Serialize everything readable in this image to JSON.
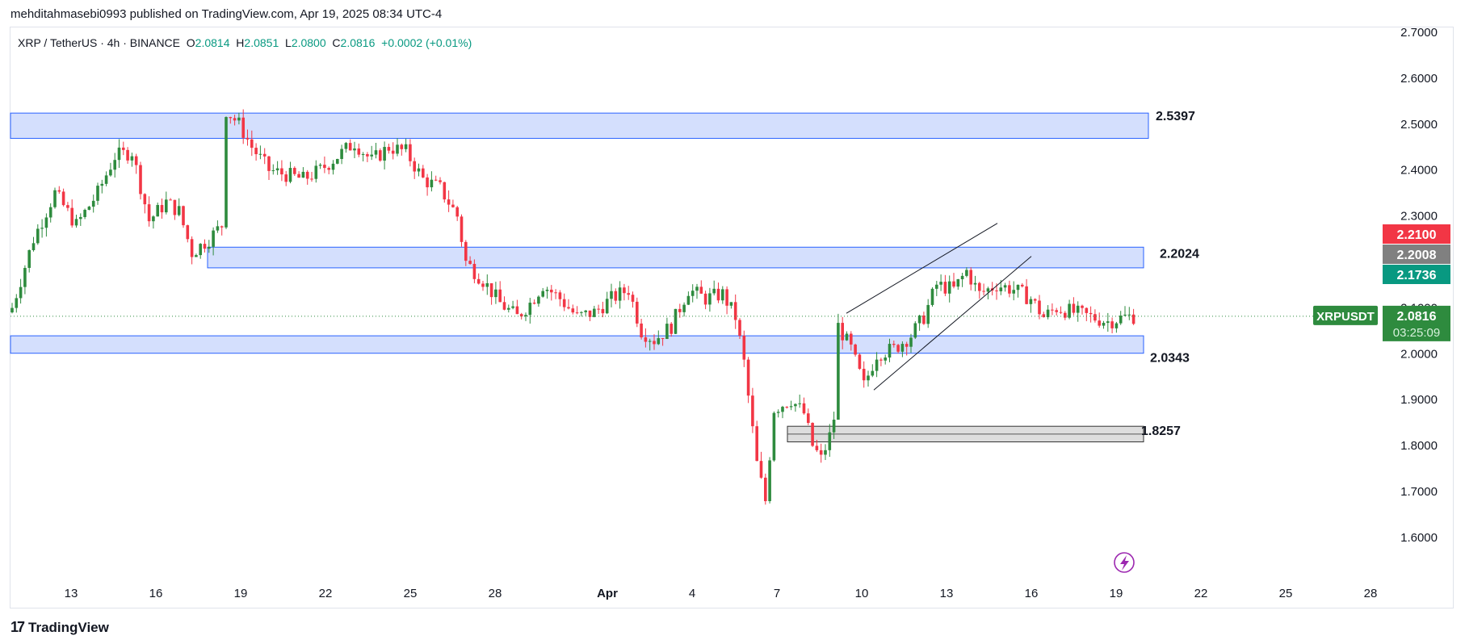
{
  "header": {
    "published": "mehditahmasebi0993 published on TradingView.com, Apr 19, 2025 08:34 UTC-4"
  },
  "legend": {
    "symbol": "XRP / TetherUS · 4h · BINANCE",
    "open_label": "O",
    "open": "2.0814",
    "high_label": "H",
    "high": "2.0851",
    "low_label": "L",
    "low": "2.0800",
    "close_label": "C",
    "close": "2.0816",
    "change": "+0.0002 (+0.01%)"
  },
  "footer": {
    "brand": "TradingView",
    "logo": "17"
  },
  "colors": {
    "up": "#2e8b3e",
    "down": "#f23645",
    "zone_fill": "#d2ddfd",
    "zone_border": "#2962ff",
    "grey_zone": "#d9d9d9",
    "last_price": "#2e8b3e",
    "price_red": "#f23645",
    "price_grey": "#808080",
    "price_teal": "#089981"
  },
  "chart_data": {
    "type": "candlestick",
    "symbol": "XRPUSDT",
    "ylim": [
      1.55,
      2.72
    ],
    "y_ticks": [
      "1.6000",
      "1.7000",
      "1.8000",
      "1.9000",
      "2.0000",
      "2.1000",
      "2.3000",
      "2.4000",
      "2.5000",
      "2.6000",
      "2.7000"
    ],
    "x_ticks": [
      "13",
      "16",
      "19",
      "22",
      "25",
      "28",
      "Apr",
      "4",
      "7",
      "10",
      "13",
      "16",
      "19",
      "22",
      "25",
      "28"
    ],
    "zones": [
      {
        "label": "2.5397",
        "low": 2.469,
        "high": 2.524,
        "style": "blue"
      },
      {
        "label": "2.2024",
        "low": 2.187,
        "high": 2.232,
        "style": "blue"
      },
      {
        "label": "2.0343",
        "low": 2.001,
        "high": 2.039,
        "style": "blue"
      },
      {
        "label": "1.8257",
        "low": 1.808,
        "high": 1.842,
        "style": "grey"
      }
    ],
    "rising_wedge": {
      "upper": [
        [
          "Apr 9",
          2.088
        ],
        [
          "Apr 15",
          2.284
        ]
      ],
      "lower": [
        [
          "Apr 10",
          1.921
        ],
        [
          "Apr 16",
          2.212
        ]
      ]
    },
    "price_labels": [
      {
        "value": "2.2100",
        "color": "red"
      },
      {
        "value": "2.2008",
        "color": "grey"
      },
      {
        "value": "2.1736",
        "color": "teal"
      }
    ],
    "last_price": {
      "symbol": "XRPUSDT",
      "value": "2.0816",
      "countdown": "03:25:09",
      "price": 2.0816
    },
    "close_path": [
      [
        0,
        2.1
      ],
      [
        5,
        2.25
      ],
      [
        10,
        2.35
      ],
      [
        15,
        2.28
      ],
      [
        20,
        2.35
      ],
      [
        24,
        2.43
      ],
      [
        28,
        2.44
      ],
      [
        32,
        2.29
      ],
      [
        36,
        2.33
      ],
      [
        39,
        2.31
      ],
      [
        42,
        2.22
      ],
      [
        46,
        2.25
      ],
      [
        49,
        2.28
      ],
      [
        50,
        2.53
      ],
      [
        53,
        2.5
      ],
      [
        56,
        2.45
      ],
      [
        60,
        2.4
      ],
      [
        64,
        2.39
      ],
      [
        68,
        2.38
      ],
      [
        72,
        2.4
      ],
      [
        76,
        2.43
      ],
      [
        80,
        2.46
      ],
      [
        84,
        2.42
      ],
      [
        88,
        2.45
      ],
      [
        92,
        2.44
      ],
      [
        96,
        2.38
      ],
      [
        100,
        2.36
      ],
      [
        104,
        2.3
      ],
      [
        106,
        2.2
      ],
      [
        110,
        2.16
      ],
      [
        114,
        2.11
      ],
      [
        118,
        2.08
      ],
      [
        121,
        2.11
      ],
      [
        124,
        2.15
      ],
      [
        128,
        2.12
      ],
      [
        132,
        2.08
      ],
      [
        136,
        2.09
      ],
      [
        140,
        2.12
      ],
      [
        144,
        2.14
      ],
      [
        147,
        2.05
      ],
      [
        150,
        2.03
      ],
      [
        154,
        2.06
      ],
      [
        158,
        2.14
      ],
      [
        162,
        2.12
      ],
      [
        166,
        2.13
      ],
      [
        169,
        2.08
      ],
      [
        171,
        1.98
      ],
      [
        174,
        1.76
      ],
      [
        176,
        1.68
      ],
      [
        178,
        1.88
      ],
      [
        182,
        1.9
      ],
      [
        185,
        1.87
      ],
      [
        187,
        1.8
      ],
      [
        189,
        1.77
      ],
      [
        191,
        1.82
      ],
      [
        192,
        1.86
      ],
      [
        193,
        2.06
      ],
      [
        196,
        2.01
      ],
      [
        199,
        1.93
      ],
      [
        202,
        2.0
      ],
      [
        206,
        2.01
      ],
      [
        210,
        2.04
      ],
      [
        213,
        2.08
      ],
      [
        216,
        2.15
      ],
      [
        220,
        2.14
      ],
      [
        223,
        2.18
      ],
      [
        226,
        2.13
      ],
      [
        230,
        2.15
      ],
      [
        234,
        2.14
      ],
      [
        238,
        2.12
      ],
      [
        241,
        2.08
      ],
      [
        244,
        2.1
      ],
      [
        248,
        2.09
      ],
      [
        252,
        2.08
      ],
      [
        256,
        2.07
      ],
      [
        260,
        2.08
      ],
      [
        262,
        2.0816
      ]
    ]
  }
}
